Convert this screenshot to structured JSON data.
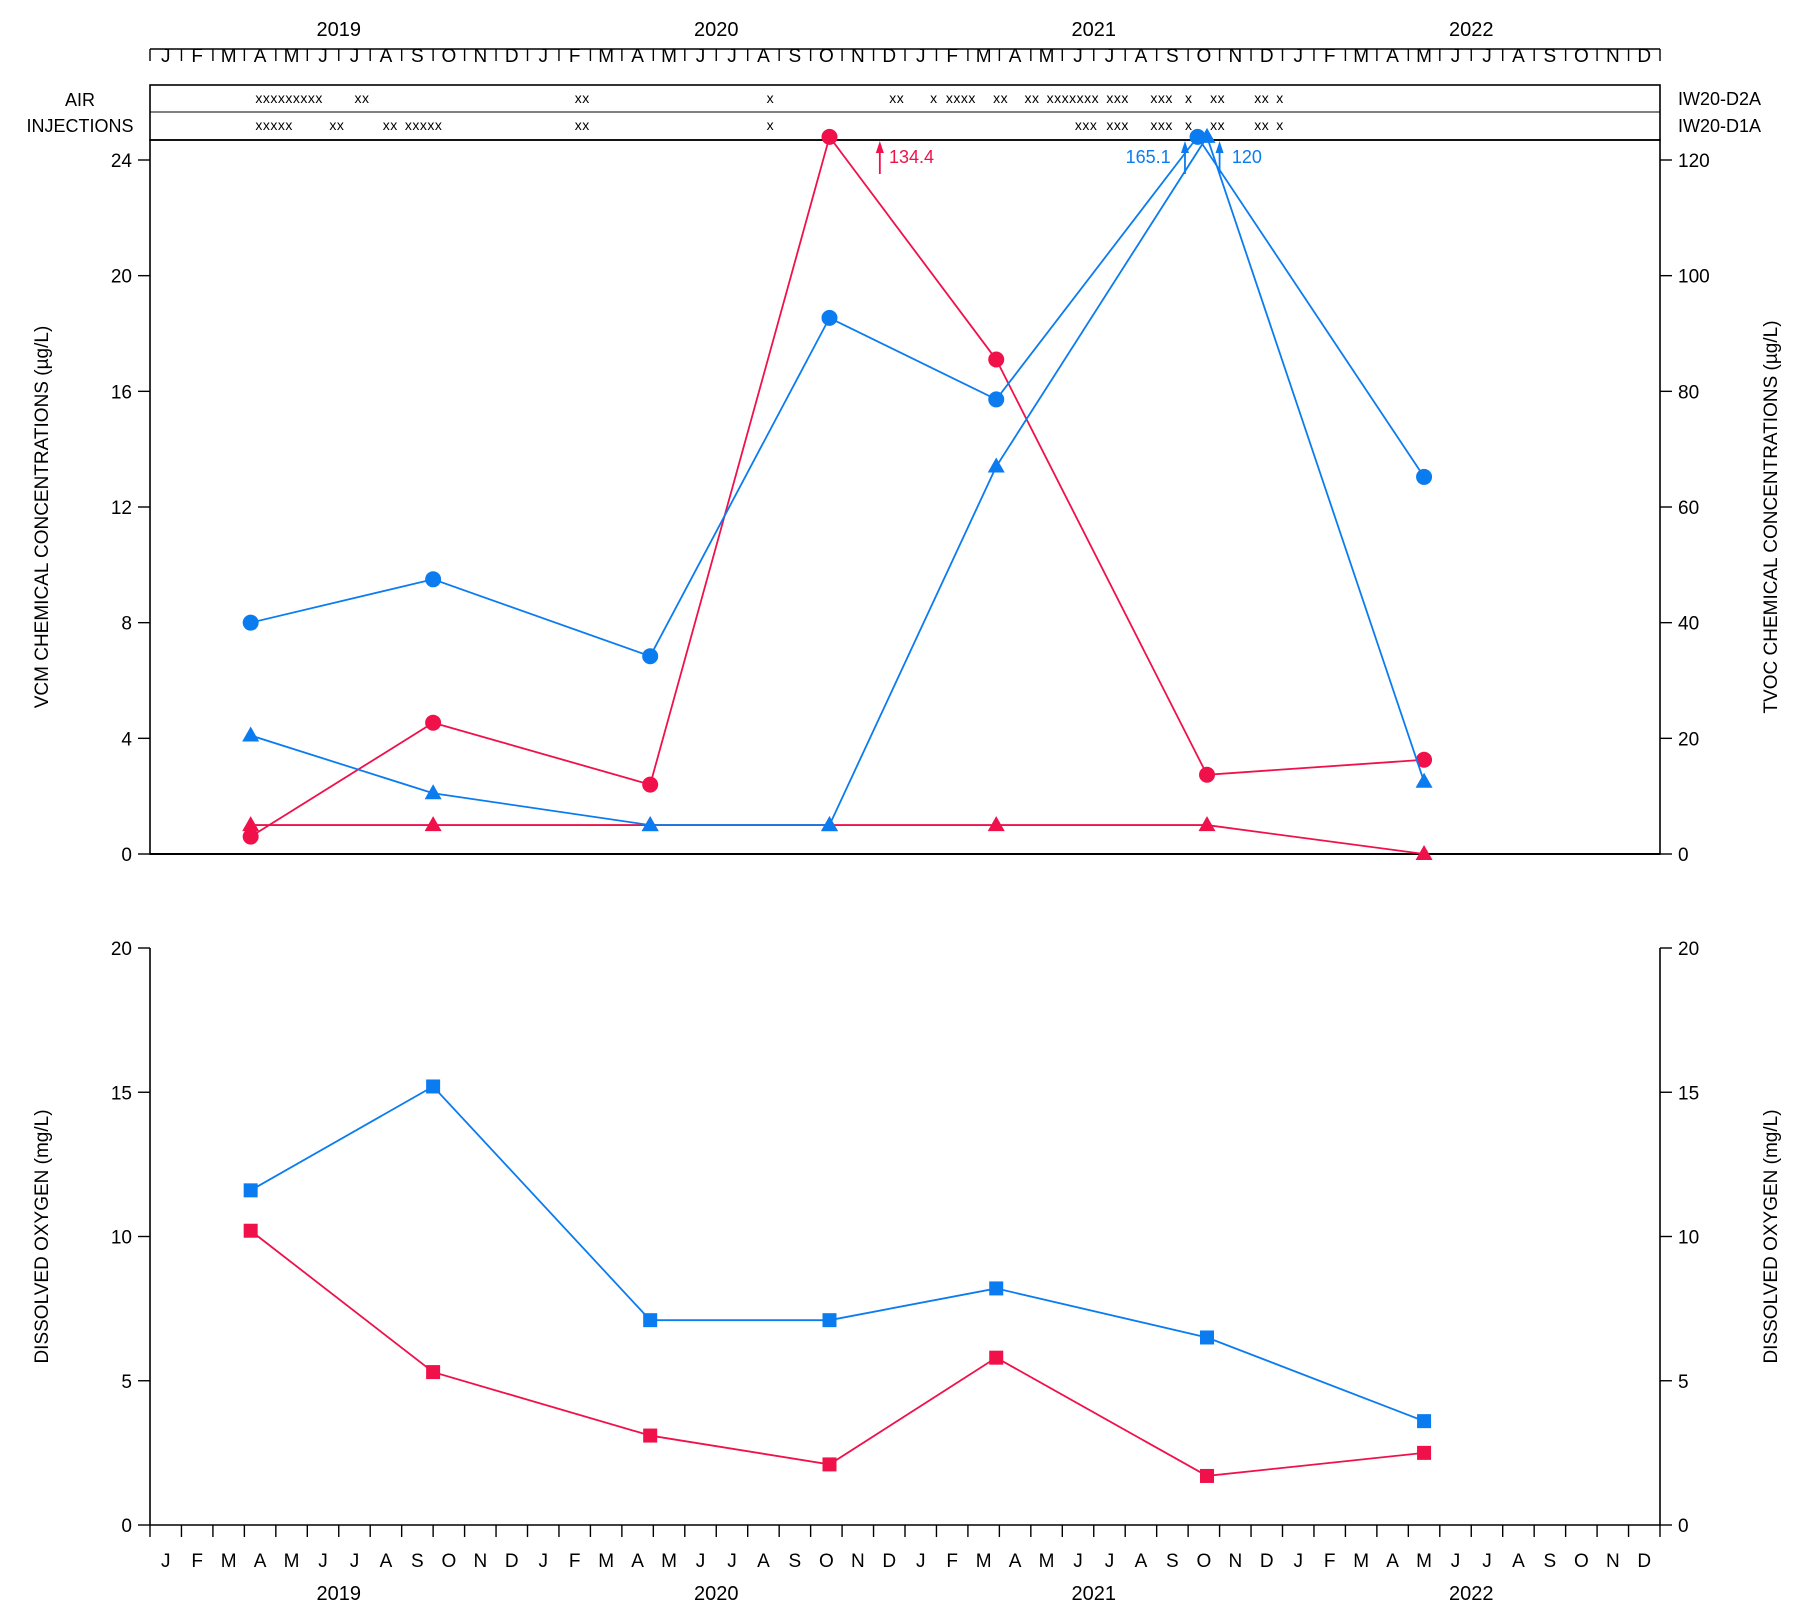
{
  "months": [
    "J",
    "F",
    "M",
    "A",
    "M",
    "J",
    "J",
    "A",
    "S",
    "O",
    "N",
    "D",
    "J",
    "F",
    "M",
    "A",
    "M",
    "J",
    "J",
    "A",
    "S",
    "O",
    "N",
    "D",
    "J",
    "F",
    "M",
    "A",
    "M",
    "J",
    "J",
    "A",
    "S",
    "O",
    "N",
    "D",
    "J",
    "F",
    "M",
    "A",
    "M",
    "J",
    "J",
    "A",
    "S",
    "O",
    "N",
    "D"
  ],
  "years": [
    "2019",
    "2020",
    "2021",
    "2022"
  ],
  "colors": {
    "red": "#f0114b",
    "blue": "#0b7cf0"
  },
  "injections": {
    "title_line1": "AIR",
    "title_line2": "INJECTIONS",
    "rows": [
      {
        "name": "IW20-D2A",
        "marks": [
          {
            "month": 3.35,
            "text": "xxxxxxxxx"
          },
          {
            "month": 6.5,
            "text": "xx"
          },
          {
            "month": 13.5,
            "text": "xx"
          },
          {
            "month": 19.6,
            "text": "x"
          },
          {
            "month": 23.5,
            "text": "xx"
          },
          {
            "month": 24.8,
            "text": "x"
          },
          {
            "month": 25.3,
            "text": "xxxx"
          },
          {
            "month": 26.8,
            "text": "xx"
          },
          {
            "month": 27.8,
            "text": "xx"
          },
          {
            "month": 28.5,
            "text": "xxxxxxx"
          },
          {
            "month": 30.4,
            "text": "xxx"
          },
          {
            "month": 31.8,
            "text": "xxx"
          },
          {
            "month": 32.9,
            "text": "x"
          },
          {
            "month": 33.7,
            "text": "xx"
          },
          {
            "month": 35.1,
            "text": "xx"
          },
          {
            "month": 35.8,
            "text": "x"
          }
        ]
      },
      {
        "name": "IW20-D1A",
        "marks": [
          {
            "month": 3.35,
            "text": "xxxxx"
          },
          {
            "month": 5.7,
            "text": "xx"
          },
          {
            "month": 7.4,
            "text": "xx"
          },
          {
            "month": 8.1,
            "text": "xxxxx"
          },
          {
            "month": 13.5,
            "text": "xx"
          },
          {
            "month": 19.6,
            "text": "x"
          },
          {
            "month": 29.4,
            "text": "xxx"
          },
          {
            "month": 30.4,
            "text": "xxx"
          },
          {
            "month": 31.8,
            "text": "xxx"
          },
          {
            "month": 32.9,
            "text": "x"
          },
          {
            "month": 33.7,
            "text": "xx"
          },
          {
            "month": 35.1,
            "text": "xx"
          },
          {
            "month": 35.8,
            "text": "x"
          }
        ]
      }
    ]
  },
  "chart_data": [
    {
      "type": "line",
      "x_axis": "months Jan 2019 – Dec 2022",
      "ylabel": "VCM CHEMICAL CONCENTRATIONS (µg/L)",
      "ylabel_right": "TVOC CHEMICAL CONCENTRATIONS (µg/L)",
      "ylim": [
        0,
        24
      ],
      "ylim_right": [
        0,
        120
      ],
      "yticks": [
        0,
        4,
        8,
        12,
        16,
        20,
        24
      ],
      "yticks_right": [
        0,
        20,
        40,
        60,
        80,
        100,
        120
      ],
      "series": [
        {
          "color": "red",
          "marker": "circle",
          "axis": "right",
          "points": [
            [
              3.2,
              3
            ],
            [
              9.0,
              22.7
            ],
            [
              15.9,
              12
            ],
            [
              21.6,
              124
            ],
            [
              26.9,
              85.5
            ],
            [
              33.6,
              13.7
            ],
            [
              40.5,
              16.3
            ]
          ]
        },
        {
          "color": "red",
          "marker": "triangle",
          "axis": "left",
          "points": [
            [
              3.2,
              1
            ],
            [
              9.0,
              1
            ],
            [
              15.9,
              1
            ],
            [
              21.6,
              1
            ],
            [
              26.9,
              1
            ],
            [
              33.6,
              1
            ],
            [
              40.5,
              0
            ]
          ]
        },
        {
          "color": "blue",
          "marker": "circle",
          "axis": "right",
          "points": [
            [
              3.2,
              40
            ],
            [
              9.0,
              47.5
            ],
            [
              15.9,
              34.2
            ],
            [
              21.6,
              92.7
            ],
            [
              26.9,
              78.6
            ],
            [
              33.3,
              124
            ],
            [
              40.5,
              65.2
            ]
          ]
        },
        {
          "color": "blue",
          "marker": "triangle",
          "axis": "left",
          "points": [
            [
              3.2,
              4.1
            ],
            [
              9.0,
              2.1
            ],
            [
              15.9,
              1
            ],
            [
              21.6,
              1
            ],
            [
              26.9,
              13.4
            ],
            [
              33.6,
              24.8
            ],
            [
              40.5,
              2.5
            ]
          ]
        }
      ],
      "annotations": [
        {
          "text": "134.4",
          "color": "red",
          "arrow_month": 23.2,
          "label_month": 23.3
        },
        {
          "text": "165.1",
          "color": "blue",
          "arrow_month": 32.9,
          "label_month": 32.7
        },
        {
          "text": "120",
          "color": "blue",
          "arrow_month": 34.0,
          "label_month": 34.2
        }
      ]
    },
    {
      "type": "line",
      "x_axis": "months Jan 2019 – Dec 2022",
      "ylabel": "DISSOLVED OXYGEN (mg/L)",
      "ylabel_right": "DISSOLVED OXYGEN (mg/L)",
      "ylim": [
        0,
        20
      ],
      "yticks": [
        0,
        5,
        10,
        15,
        20
      ],
      "series": [
        {
          "color": "blue",
          "marker": "square",
          "points": [
            [
              3.2,
              11.6
            ],
            [
              9.0,
              15.2
            ],
            [
              15.9,
              7.1
            ],
            [
              21.6,
              7.1
            ],
            [
              26.9,
              8.2
            ],
            [
              33.6,
              6.5
            ],
            [
              40.5,
              3.6
            ]
          ]
        },
        {
          "color": "red",
          "marker": "square",
          "points": [
            [
              3.2,
              10.2
            ],
            [
              9.0,
              5.3
            ],
            [
              15.9,
              3.1
            ],
            [
              21.6,
              2.1
            ],
            [
              26.9,
              5.8
            ],
            [
              33.6,
              1.7
            ],
            [
              40.5,
              2.5
            ]
          ]
        }
      ]
    }
  ]
}
